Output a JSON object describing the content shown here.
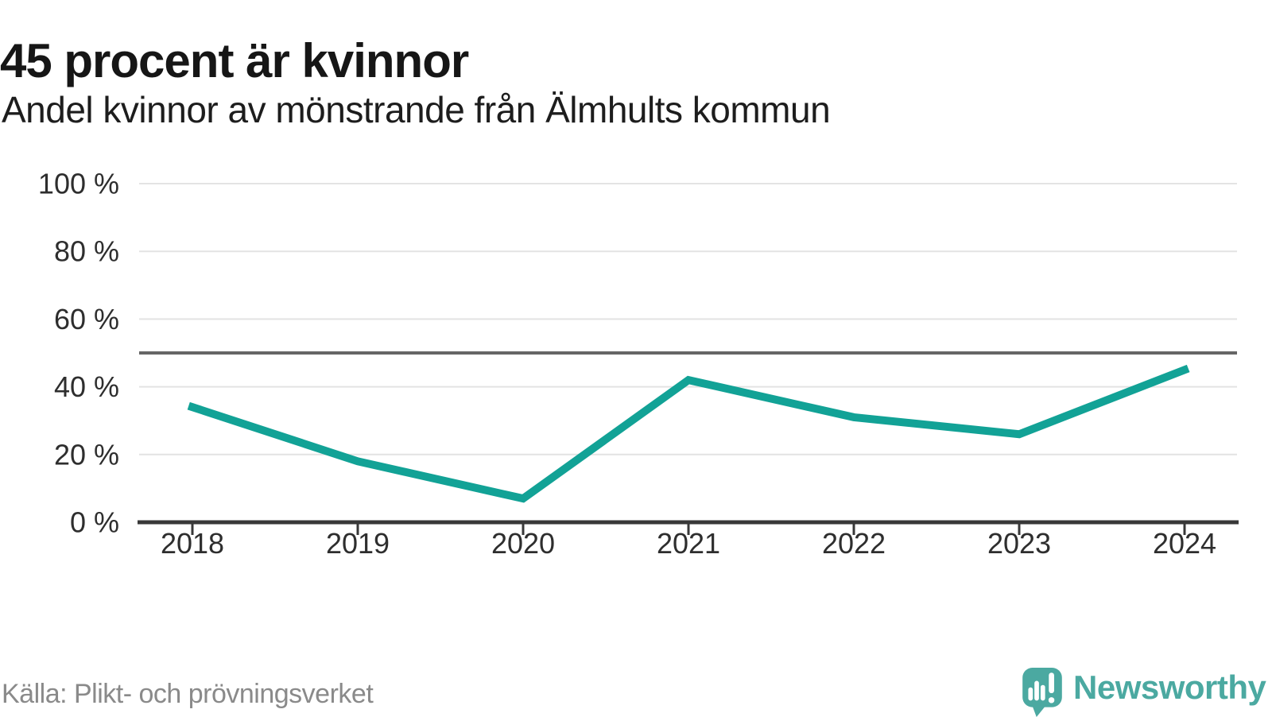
{
  "header": {
    "title": "45 procent är kvinnor",
    "subtitle": "Andel kvinnor av mönstrande från Älmhults kommun"
  },
  "footer": {
    "source": "Källa: Plikt- och prövningsverket",
    "brand": "Newsworthy"
  },
  "chart_data": {
    "type": "line",
    "title": "45 procent är kvinnor",
    "subtitle": "Andel kvinnor av mönstrande från Älmhults kommun",
    "categories": [
      "2018",
      "2019",
      "2020",
      "2021",
      "2022",
      "2023",
      "2024"
    ],
    "series": [
      {
        "name": "Andel kvinnor av mönstrande",
        "values": [
          34,
          18,
          7,
          42,
          31,
          26,
          45
        ]
      }
    ],
    "xlabel": "",
    "ylabel": "",
    "ylim": [
      0,
      100
    ],
    "y_ticks": [
      0,
      20,
      40,
      60,
      80,
      100
    ],
    "y_tick_suffix": " %",
    "reference_line": 50,
    "grid": "horizontal",
    "legend": "none"
  },
  "colors": {
    "line": "#12a296",
    "reference_line": "#666666",
    "grid": "#e3e3e3",
    "axis": "#383838",
    "tick_text": "#2e2e2e",
    "logo": "#4ba9a1",
    "muted_text": "#8a8a8a"
  }
}
